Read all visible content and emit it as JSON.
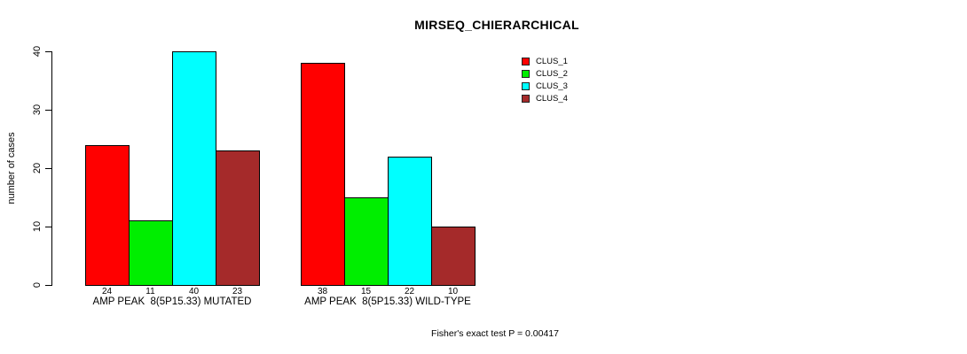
{
  "chart_data": {
    "type": "bar",
    "title": "MIRSEQ_CHIERARCHICAL",
    "ylabel": "number of cases",
    "ylim": [
      0,
      40
    ],
    "yticks": [
      0,
      10,
      20,
      30,
      40
    ],
    "grid": false,
    "legend_position": "top-right",
    "series": [
      {
        "name": "CLUS_1",
        "color": "#ff0000"
      },
      {
        "name": "CLUS_2",
        "color": "#00ee00"
      },
      {
        "name": "CLUS_3",
        "color": "#00ffff"
      },
      {
        "name": "CLUS_4",
        "color": "#a52a2a"
      }
    ],
    "groups": [
      {
        "label": "AMP PEAK  8(5P15.33) MUTATED",
        "values": [
          24,
          11,
          40,
          23
        ]
      },
      {
        "label": "AMP PEAK  8(5P15.33) WILD-TYPE",
        "values": [
          38,
          15,
          22,
          10
        ]
      }
    ],
    "annotation": "Fisher's exact test P = 0.00417"
  }
}
